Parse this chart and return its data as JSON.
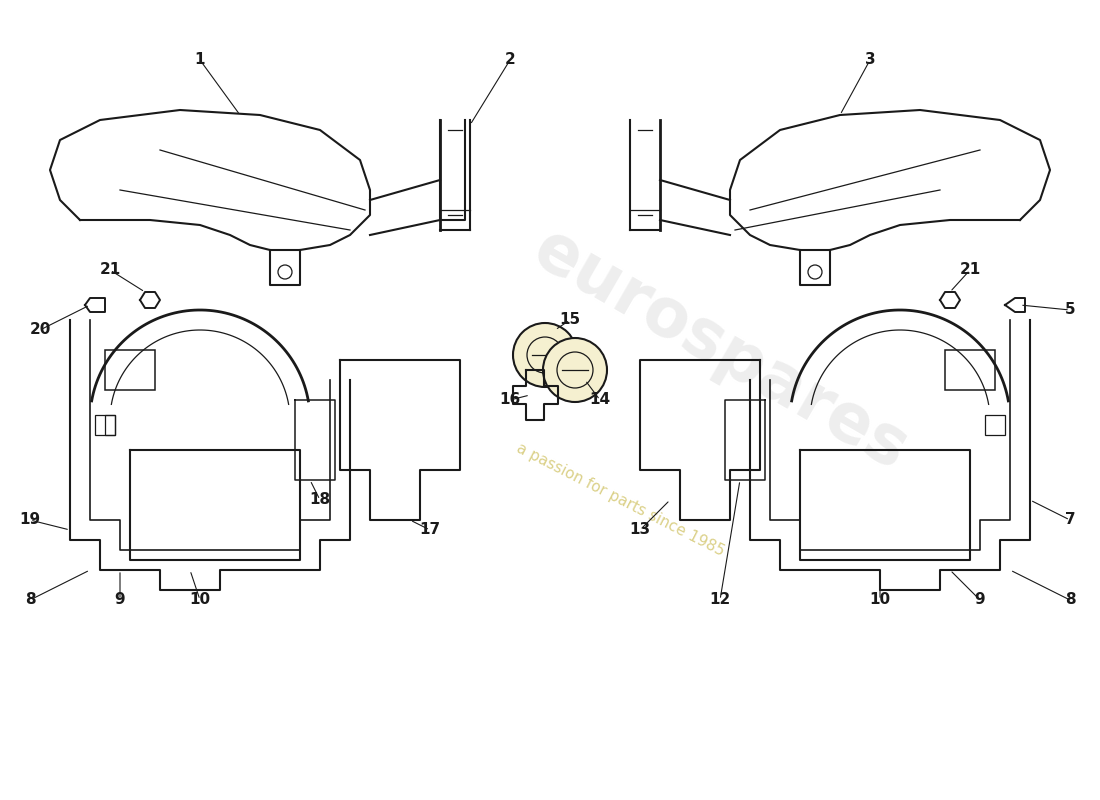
{
  "bg_color": "#ffffff",
  "line_color": "#1a1a1a",
  "lw_main": 1.5,
  "lw_thin": 0.9,
  "watermark1": "eurospares",
  "watermark2": "a passion for parts since 1985",
  "label_fontsize": 11
}
